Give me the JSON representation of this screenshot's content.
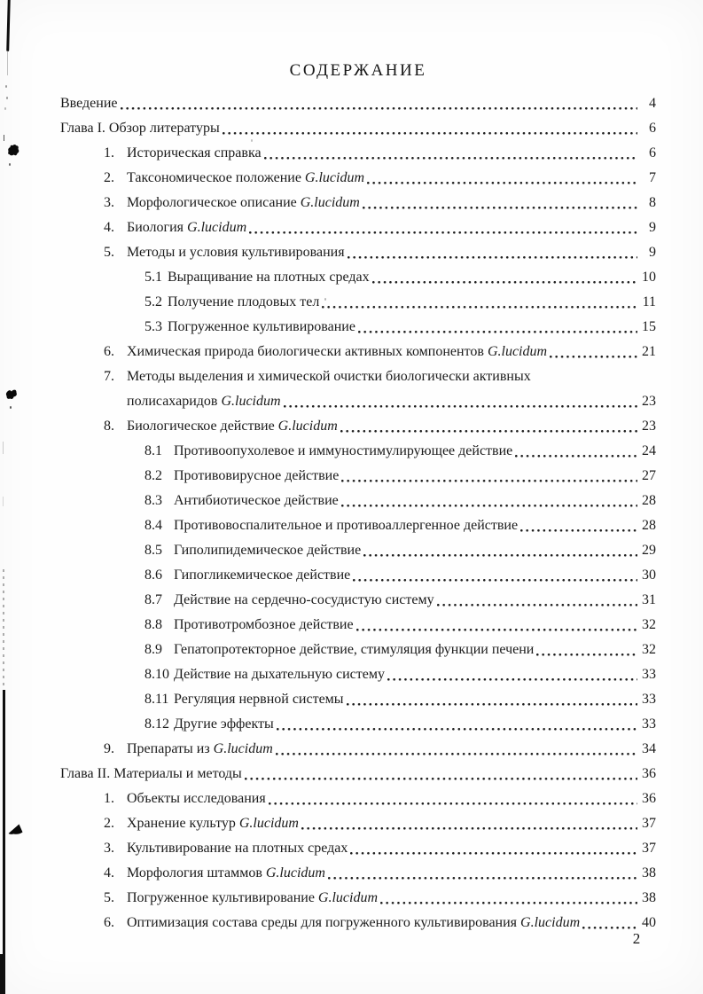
{
  "document": {
    "title": "СОДЕРЖАНИЕ",
    "page_number": "2",
    "toc": [
      {
        "level": 0,
        "num": "",
        "pre": "Введение",
        "page": "4"
      },
      {
        "level": 0,
        "num": "",
        "pre": "Глава I. Обзор литературы",
        "page": "6"
      },
      {
        "level": 1,
        "num": "1.",
        "pre": "Историческая справка",
        "page": "6"
      },
      {
        "level": 1,
        "num": "2.",
        "pre": "Таксономическое положение ",
        "em": "G.lucidum",
        "page": "7"
      },
      {
        "level": 1,
        "num": "3.",
        "pre": "Морфологическое описание ",
        "em": "G.lucidum",
        "page": "8"
      },
      {
        "level": 1,
        "num": "4.",
        "pre": "Биология ",
        "em": "G.lucidum",
        "page": "9"
      },
      {
        "level": 1,
        "num": "5.",
        "pre": "Методы и условия культивирования",
        "page": "9"
      },
      {
        "level": 2,
        "num": "5.1",
        "pre": "Выращивание на плотных средах",
        "page": "10"
      },
      {
        "level": 2,
        "num": "5.2",
        "pre": "Получение плодовых тел",
        "page": "11"
      },
      {
        "level": 2,
        "num": "5.3",
        "pre": "Погруженное культивирование",
        "page": "15"
      },
      {
        "level": 1,
        "num": "6.",
        "pre": "Химическая природа биологически активных компонентов ",
        "em": "G.lucidum",
        "page": "21"
      },
      {
        "level": 1,
        "num": "7.",
        "pre": "Методы выделения и химической очистки биологически активных",
        "page": ""
      },
      {
        "level": 1,
        "num": "",
        "cont": true,
        "pre": "полисахаридов ",
        "em": "G.lucidum",
        "page": "23"
      },
      {
        "level": 1,
        "num": "8.",
        "pre": "Биологическое действие ",
        "em": "G.lucidum",
        "page": "23"
      },
      {
        "level": 2,
        "num": "8.1",
        "pre": "Противоопухолевое и иммуностимулирующее действие",
        "page": "24"
      },
      {
        "level": 2,
        "num": "8.2",
        "pre": "Противовирусное действие",
        "page": "27"
      },
      {
        "level": 2,
        "num": "8.3",
        "pre": "Антибиотическое действие",
        "page": "28"
      },
      {
        "level": 2,
        "num": "8.4",
        "pre": "Противовоспалительное и противоаллергенное действие",
        "page": "28"
      },
      {
        "level": 2,
        "num": "8.5",
        "pre": "Гиполипидемическое действие",
        "page": "29"
      },
      {
        "level": 2,
        "num": "8.6",
        "pre": "Гипогликемическое действие",
        "page": "30"
      },
      {
        "level": 2,
        "num": "8.7",
        "pre": "Действие на сердечно-сосудистую систему",
        "page": "31"
      },
      {
        "level": 2,
        "num": "8.8",
        "pre": "Противотромбозное действие",
        "page": "32"
      },
      {
        "level": 2,
        "num": "8.9",
        "pre": "Гепатопротекторное действие, стимуляция функции печени",
        "page": "32"
      },
      {
        "level": 2,
        "num": "8.10",
        "pre": "Действие на дыхательную систему",
        "page": "33"
      },
      {
        "level": 2,
        "num": "8.11",
        "pre": "Регуляция нервной системы",
        "page": "33"
      },
      {
        "level": 2,
        "num": "8.12",
        "pre": "Другие эффекты",
        "page": "33"
      },
      {
        "level": 1,
        "num": "9.",
        "pre": "Препараты из ",
        "em": "G.lucidum",
        "page": "34"
      },
      {
        "level": 0,
        "num": "",
        "pre": "Глава II. Материалы и методы",
        "page": "36"
      },
      {
        "level": 1,
        "num": "1.",
        "pre": "Объекты исследования",
        "page": "36"
      },
      {
        "level": 1,
        "num": "2.",
        "pre": "Хранение культур ",
        "em": "G.lucidum",
        "page": "37"
      },
      {
        "level": 1,
        "num": "3.",
        "pre": "Культивирование на плотных средах",
        "page": "37"
      },
      {
        "level": 1,
        "num": "4.",
        "pre": "Морфология штаммов ",
        "em": "G.lucidum",
        "page": "38"
      },
      {
        "level": 1,
        "num": "5.",
        "pre": "Погруженное культивирование ",
        "em": "G.lucidum",
        "page": "38"
      },
      {
        "level": 1,
        "num": "6.",
        "pre": "Оптимизация состава среды для погруженного культивирования ",
        "em": "G.lucidum",
        "page": "40"
      }
    ]
  }
}
